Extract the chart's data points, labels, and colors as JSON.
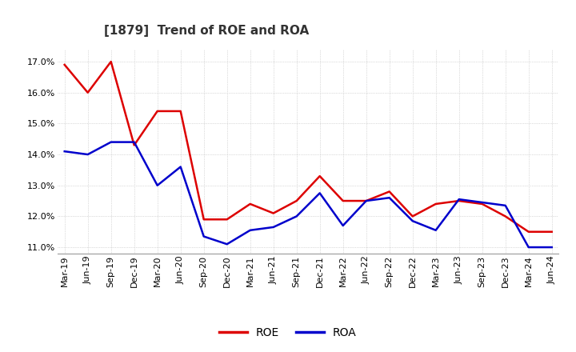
{
  "title": "[1879]  Trend of ROE and ROA",
  "x_labels": [
    "Mar-19",
    "Jun-19",
    "Sep-19",
    "Dec-19",
    "Mar-20",
    "Jun-20",
    "Sep-20",
    "Dec-20",
    "Mar-21",
    "Jun-21",
    "Sep-21",
    "Dec-21",
    "Mar-22",
    "Jun-22",
    "Sep-22",
    "Dec-22",
    "Mar-23",
    "Jun-23",
    "Sep-23",
    "Dec-23",
    "Mar-24",
    "Jun-24"
  ],
  "roe": [
    16.9,
    16.0,
    17.0,
    14.3,
    15.4,
    15.4,
    11.9,
    11.9,
    12.4,
    12.1,
    12.5,
    13.3,
    12.5,
    12.5,
    12.8,
    12.0,
    12.4,
    12.5,
    12.4,
    12.0,
    11.5,
    11.5
  ],
  "roa": [
    14.1,
    14.0,
    14.4,
    14.4,
    13.0,
    13.6,
    11.35,
    11.1,
    11.55,
    11.65,
    12.0,
    12.75,
    11.7,
    12.5,
    12.6,
    11.85,
    11.55,
    12.55,
    12.45,
    12.35,
    11.0,
    11.0
  ],
  "roe_color": "#dd0000",
  "roa_color": "#0000cc",
  "ylim": [
    10.8,
    17.4
  ],
  "yticks": [
    11.0,
    12.0,
    13.0,
    14.0,
    15.0,
    16.0,
    17.0
  ],
  "bg_color": "#ffffff",
  "plot_bg_color": "#ffffff",
  "grid_color": "#bbbbbb",
  "title_fontsize": 11,
  "tick_fontsize": 8,
  "legend_fontsize": 10,
  "line_width": 1.8
}
